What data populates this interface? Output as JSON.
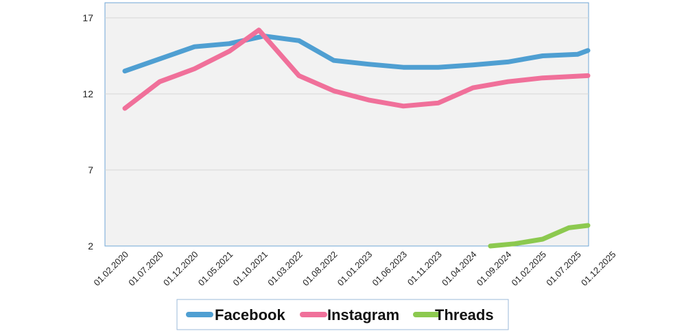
{
  "chart_data": {
    "type": "line",
    "x": [
      "01.02.2020",
      "01.07.2020",
      "01.12.2020",
      "01.05.2021",
      "01.10.2021",
      "01.03.2022",
      "01.08.2022",
      "01.01.2023",
      "01.06.2023",
      "01.11.2023",
      "01.04.2024",
      "01.09.2024",
      "01.02.2025",
      "01.07.2025",
      "01.12.2025"
    ],
    "yticks": [
      2,
      7,
      12,
      17
    ],
    "ylim": [
      2,
      18
    ],
    "grid": true,
    "legend_position": "bottom",
    "series": [
      {
        "name": "Facebook",
        "color": "#4f9fd2",
        "points": [
          {
            "t": 0.0,
            "y": 13.5
          },
          {
            "t": 1.0,
            "y": 14.3
          },
          {
            "t": 2.0,
            "y": 15.1
          },
          {
            "t": 3.0,
            "y": 15.3
          },
          {
            "t": 4.0,
            "y": 15.8
          },
          {
            "t": 5.0,
            "y": 15.5
          },
          {
            "t": 6.0,
            "y": 14.2
          },
          {
            "t": 7.0,
            "y": 13.95
          },
          {
            "t": 8.0,
            "y": 13.75
          },
          {
            "t": 9.0,
            "y": 13.75
          },
          {
            "t": 10.0,
            "y": 13.9
          },
          {
            "t": 11.0,
            "y": 14.1
          },
          {
            "t": 12.0,
            "y": 14.5
          },
          {
            "t": 13.0,
            "y": 14.6
          },
          {
            "t": 13.3,
            "y": 14.85
          }
        ]
      },
      {
        "name": "Instagram",
        "color": "#f0709a",
        "points": [
          {
            "t": 0.0,
            "y": 11.05
          },
          {
            "t": 1.0,
            "y": 12.8
          },
          {
            "t": 2.0,
            "y": 13.65
          },
          {
            "t": 3.0,
            "y": 14.8
          },
          {
            "t": 3.85,
            "y": 16.2
          },
          {
            "t": 5.0,
            "y": 13.2
          },
          {
            "t": 6.0,
            "y": 12.2
          },
          {
            "t": 7.0,
            "y": 11.6
          },
          {
            "t": 8.0,
            "y": 11.2
          },
          {
            "t": 9.0,
            "y": 11.4
          },
          {
            "t": 10.0,
            "y": 12.4
          },
          {
            "t": 11.0,
            "y": 12.8
          },
          {
            "t": 12.0,
            "y": 13.05
          },
          {
            "t": 13.3,
            "y": 13.2
          }
        ]
      },
      {
        "name": "Threads",
        "color": "#8cc94f",
        "points": [
          {
            "t": 10.5,
            "y": 2.0
          },
          {
            "t": 11.2,
            "y": 2.15
          },
          {
            "t": 12.0,
            "y": 2.45
          },
          {
            "t": 12.75,
            "y": 3.2
          },
          {
            "t": 13.3,
            "y": 3.35
          }
        ]
      }
    ]
  }
}
